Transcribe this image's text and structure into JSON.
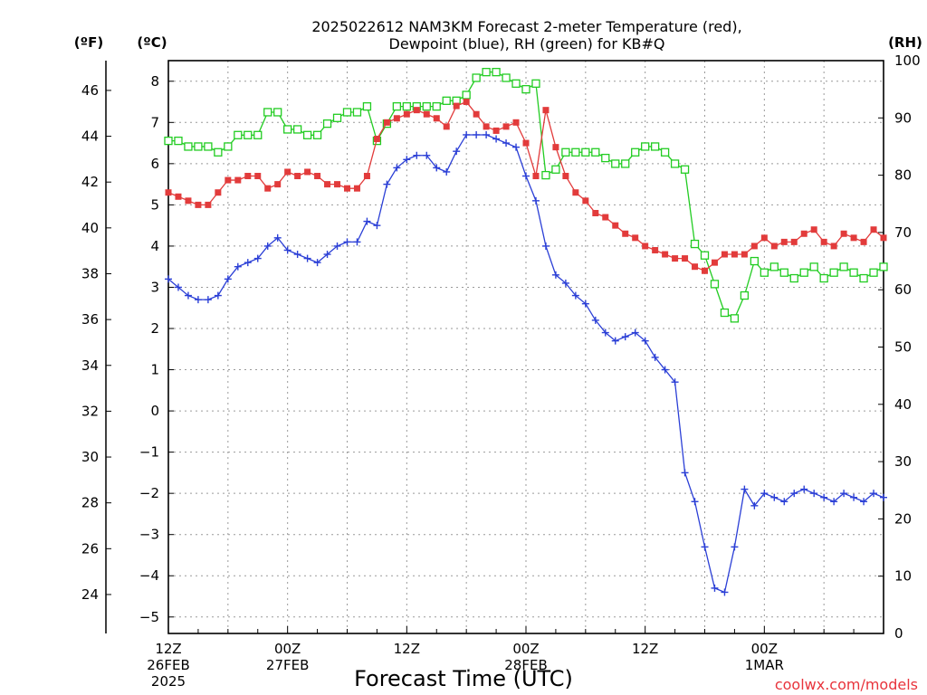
{
  "title": {
    "line1": "2025022612 NAM3KM Forecast 2-meter Temperature (red),",
    "line2": "Dewpoint (blue), RH (green) for KB#Q"
  },
  "units": {
    "fahrenheit": "(ºF)",
    "celsius": "(ºC)",
    "rh": "(RH)"
  },
  "xlabel": "Forecast Time (UTC)",
  "credit": "coolwx.com/models",
  "credit_color": "#e8343c",
  "colors": {
    "temperature": "#e23b3b",
    "dewpoint": "#2b3fd6",
    "rh": "#22cc22"
  },
  "chart_data": {
    "type": "line",
    "title": "2025022612 NAM3KM Forecast 2-meter Temperature (red), Dewpoint (blue), RH (green) for KB#Q",
    "xlabel": "Forecast Time (UTC)",
    "x": [
      0,
      1,
      2,
      3,
      4,
      5,
      6,
      7,
      8,
      9,
      10,
      11,
      12,
      13,
      14,
      15,
      16,
      17,
      18,
      19,
      20,
      21,
      22,
      23,
      24,
      25,
      26,
      27,
      28,
      29,
      30,
      31,
      32,
      33,
      34,
      35,
      36,
      37,
      38,
      39,
      40,
      41,
      42,
      43,
      44,
      45,
      46,
      47,
      48,
      49,
      50,
      51,
      52,
      53,
      54,
      55,
      56,
      57,
      58,
      59,
      60,
      61,
      62,
      63,
      64,
      65,
      66,
      67,
      68,
      69,
      70,
      71,
      72
    ],
    "x_unit": "forecast hour from 2025-02-26 12Z",
    "xlim": [
      0,
      72
    ],
    "x_ticks": [
      {
        "hour": 0,
        "lines": [
          "12Z",
          "26FEB",
          "2025"
        ]
      },
      {
        "hour": 12,
        "lines": [
          "00Z",
          "27FEB"
        ]
      },
      {
        "hour": 24,
        "lines": [
          "12Z"
        ]
      },
      {
        "hour": 36,
        "lines": [
          "00Z",
          "28FEB"
        ]
      },
      {
        "hour": 48,
        "lines": [
          "12Z"
        ]
      },
      {
        "hour": 60,
        "lines": [
          "00Z",
          "1MAR"
        ]
      }
    ],
    "left_axis_celsius": {
      "label": "(ºC)",
      "ylim": [
        -5.4,
        8.5
      ],
      "ticks": [
        8,
        7,
        6,
        5,
        4,
        3,
        2,
        1,
        0,
        -1,
        -2,
        -3,
        -4,
        -5
      ]
    },
    "left_axis_fahrenheit": {
      "label": "(ºF)",
      "ylim": [
        22.3,
        47.3
      ],
      "ticks": [
        46,
        44,
        42,
        40,
        38,
        36,
        34,
        32,
        30,
        28,
        26,
        24
      ]
    },
    "right_axis_rh": {
      "label": "(RH)",
      "ylim": [
        0,
        100
      ],
      "ticks": [
        100,
        90,
        80,
        70,
        60,
        50,
        40,
        30,
        20,
        10,
        0
      ]
    },
    "grid": true,
    "series": [
      {
        "name": "Temperature",
        "axis": "celsius",
        "marker": "filled-square",
        "values": [
          5.3,
          5.2,
          5.1,
          5.0,
          5.0,
          5.3,
          5.6,
          5.6,
          5.7,
          5.7,
          5.4,
          5.5,
          5.8,
          5.7,
          5.8,
          5.7,
          5.5,
          5.5,
          5.4,
          5.4,
          5.7,
          6.6,
          7.0,
          7.1,
          7.2,
          7.3,
          7.2,
          7.1,
          6.9,
          7.4,
          7.5,
          7.2,
          6.9,
          6.8,
          6.9,
          7.0,
          6.5,
          5.7,
          7.3,
          6.4,
          5.7,
          5.3,
          5.1,
          4.8,
          4.7,
          4.5,
          4.3,
          4.2,
          4.0,
          3.9,
          3.8,
          3.7,
          3.7,
          3.5,
          3.4,
          3.6,
          3.8,
          3.8,
          3.8,
          4.0,
          4.2,
          4.0,
          4.1,
          4.1,
          4.3,
          4.4,
          4.1,
          4.0,
          4.3,
          4.2,
          4.1,
          4.4,
          4.2
        ]
      },
      {
        "name": "Dewpoint",
        "axis": "celsius",
        "marker": "plus",
        "values": [
          3.2,
          3.0,
          2.8,
          2.7,
          2.7,
          2.8,
          3.2,
          3.5,
          3.6,
          3.7,
          4.0,
          4.2,
          3.9,
          3.8,
          3.7,
          3.6,
          3.8,
          4.0,
          4.1,
          4.1,
          4.6,
          4.5,
          5.5,
          5.9,
          6.1,
          6.2,
          6.2,
          5.9,
          5.8,
          6.3,
          6.7,
          6.7,
          6.7,
          6.6,
          6.5,
          6.4,
          5.7,
          5.1,
          4.0,
          3.3,
          3.1,
          2.8,
          2.6,
          2.2,
          1.9,
          1.7,
          1.8,
          1.9,
          1.7,
          1.3,
          1.0,
          0.7,
          -1.5,
          -2.2,
          -3.3,
          -4.3,
          -4.4,
          -3.3,
          -1.9,
          -2.3,
          -2.0,
          -2.1,
          -2.2,
          -2.0,
          -1.9,
          -2.0,
          -2.1,
          -2.2,
          -2.0,
          -2.1,
          -2.2,
          -2.0,
          -2.1
        ]
      },
      {
        "name": "RH",
        "axis": "rh",
        "marker": "open-square",
        "values": [
          86,
          86,
          85,
          85,
          85,
          84,
          85,
          87,
          87,
          87,
          91,
          91,
          88,
          88,
          87,
          87,
          89,
          90,
          91,
          91,
          92,
          86,
          89,
          92,
          92,
          92,
          92,
          92,
          93,
          93,
          94,
          97,
          98,
          98,
          97,
          96,
          95,
          96,
          80,
          81,
          84,
          84,
          84,
          84,
          83,
          82,
          82,
          84,
          85,
          85,
          84,
          82,
          81,
          68,
          66,
          61,
          56,
          55,
          59,
          65,
          63,
          64,
          63,
          62,
          63,
          64,
          62,
          63,
          64,
          63,
          62,
          63,
          64
        ]
      }
    ]
  }
}
